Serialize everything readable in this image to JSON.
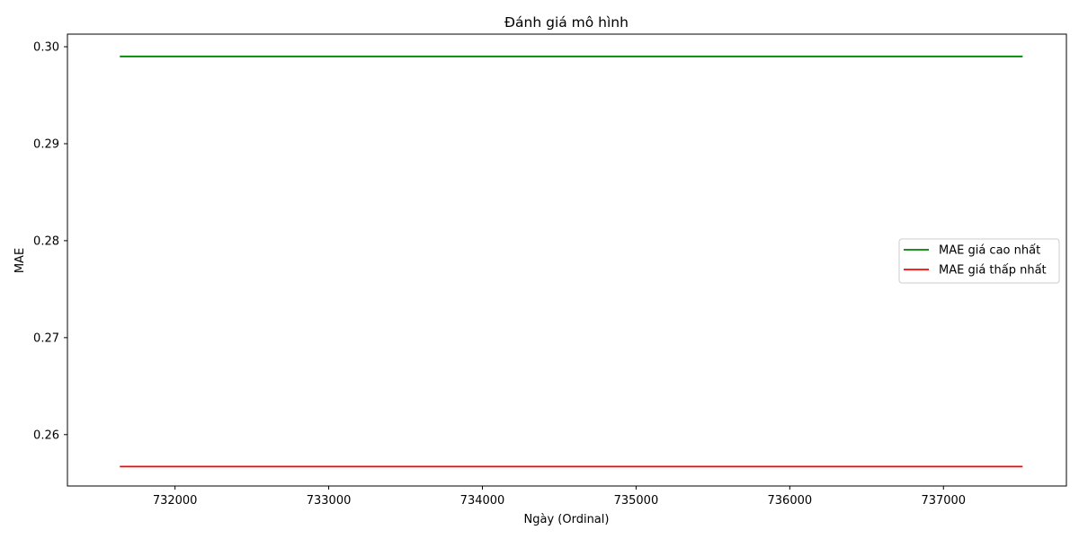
{
  "chart_data": {
    "type": "line",
    "title": "Đánh giá mô hình",
    "xlabel": "Ngày (Ordinal)",
    "ylabel": "MAE",
    "xlim": [
      731300,
      737800
    ],
    "ylim": [
      0.2547,
      0.3013
    ],
    "x_ticks": [
      732000,
      733000,
      734000,
      735000,
      736000,
      737000
    ],
    "y_ticks": [
      0.26,
      0.27,
      0.28,
      0.29,
      0.3
    ],
    "y_tick_labels": [
      "0.26",
      "0.27",
      "0.28",
      "0.29",
      "0.30"
    ],
    "grid": false,
    "legend_position": "center-right",
    "series": [
      {
        "name": "MAE giá cao nhất",
        "color": "#008000",
        "x": [
          731641,
          737515
        ],
        "y": [
          0.299,
          0.299
        ]
      },
      {
        "name": "MAE giá thấp nhất",
        "color": "#ff0000",
        "x": [
          731641,
          737515
        ],
        "y": [
          0.2567,
          0.2567
        ]
      }
    ]
  }
}
